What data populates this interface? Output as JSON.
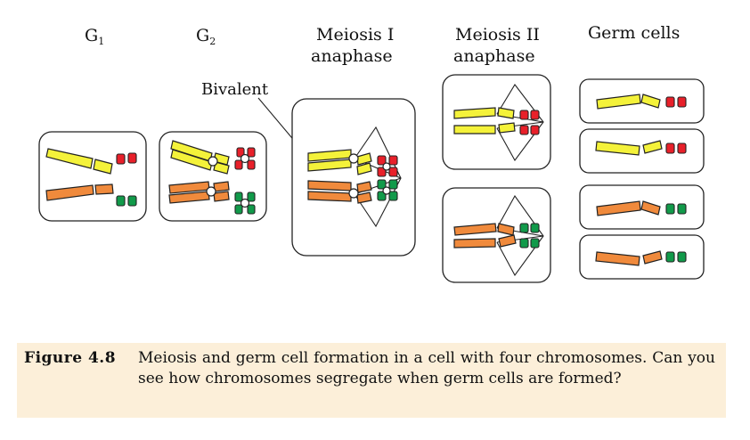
{
  "stages": [
    {
      "main": "G",
      "sub": "1"
    },
    {
      "main": "G",
      "sub": "2"
    },
    {
      "line1": "Meiosis I",
      "line2": "anaphase"
    },
    {
      "line1": "Meiosis II",
      "line2": "anaphase"
    },
    {
      "line1": "Germ cells"
    }
  ],
  "bivalent_label": "Bivalent",
  "caption": {
    "label": "Figure 4.8",
    "text": "Meiosis and germ cell formation in a cell with four chromosomes. Can you see how chromosomes segregate when germ cells are formed?"
  },
  "colors": {
    "yellow": "#f4f23a",
    "orange": "#f08a3c",
    "red": "#e8202a",
    "green": "#119a4a",
    "caption_bg": "#fcefd9"
  }
}
